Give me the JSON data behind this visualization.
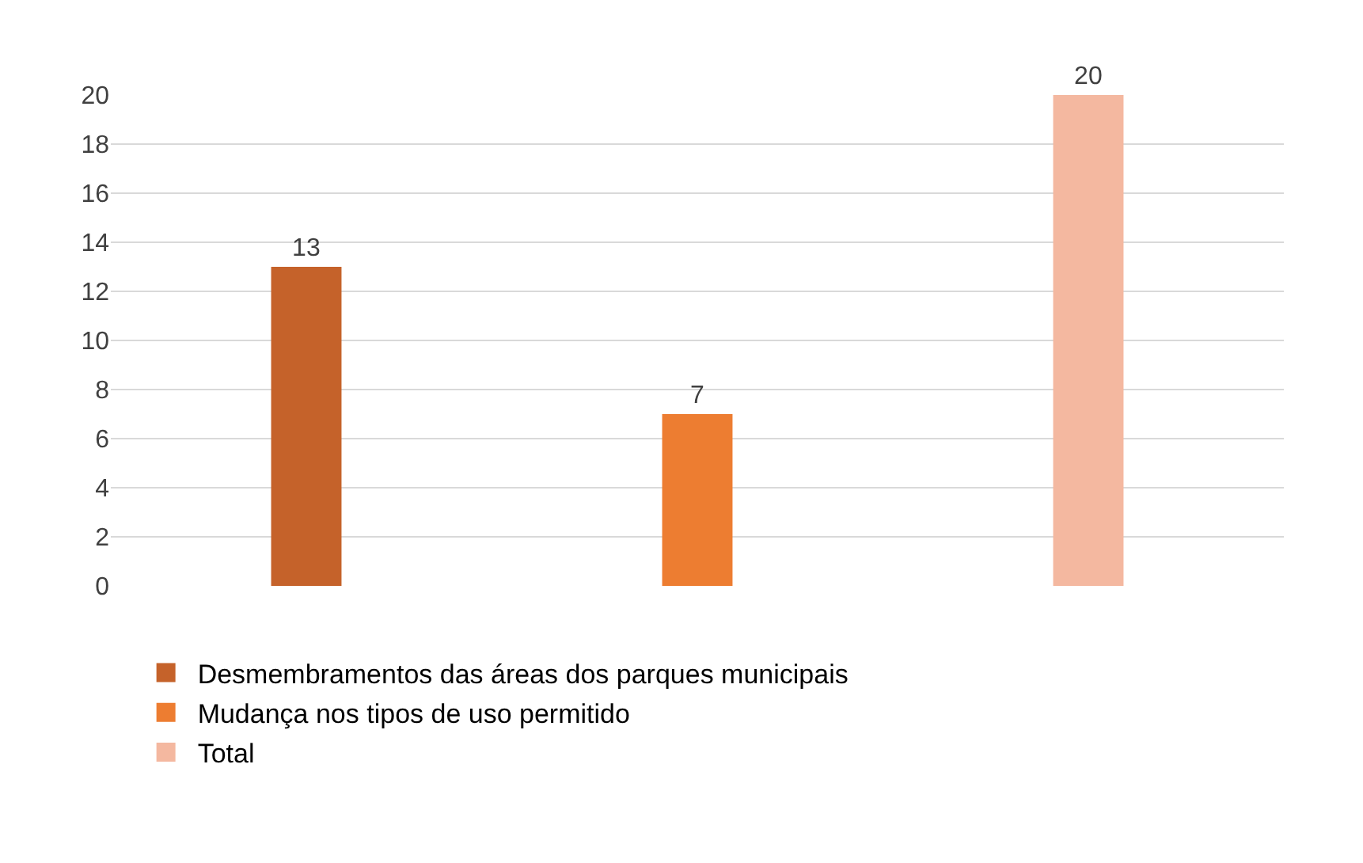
{
  "chart_data": {
    "type": "bar",
    "categories": [
      null,
      null,
      null
    ],
    "series": [
      {
        "name": "Desmembramentos das áreas dos parques municipais",
        "color": "#c5622a",
        "values": [
          13,
          null,
          null
        ]
      },
      {
        "name": "Mudança nos tipos de uso permitido",
        "color": "#ed7d31",
        "values": [
          null,
          7,
          null
        ]
      },
      {
        "name": "Total",
        "color": "#f4b8a0",
        "values": [
          null,
          null,
          20
        ]
      }
    ],
    "ylim": [
      0,
      20
    ],
    "yticks": [
      0,
      2,
      4,
      6,
      8,
      10,
      12,
      14,
      16,
      18,
      20
    ],
    "grid": "y",
    "legend": "bottom",
    "data_labels": true
  }
}
